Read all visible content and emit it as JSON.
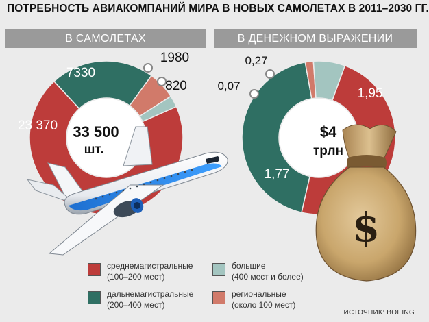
{
  "title": "ПОТРЕБНОСТЬ АВИАКОМПАНИЙ МИРА В НОВЫХ САМОЛЕТАХ В 2011–2030 ГГ.",
  "source": "ИСТОЧНИК: BOEING",
  "colors": {
    "medium_haul": "#bd3c3a",
    "long_haul": "#2f6f63",
    "large": "#a3c5c0",
    "regional": "#d17a6a",
    "ribbon": "#9a9a9a",
    "background": "#ebebeb"
  },
  "legend": [
    {
      "key": "medium_haul",
      "label": "среднемагистральные\n(100–200 мест)"
    },
    {
      "key": "large",
      "label": "большие\n(400 мест и более)"
    },
    {
      "key": "long_haul",
      "label": "дальнемагистральные\n(200–400 мест)"
    },
    {
      "key": "regional",
      "label": "региональные\n(около 100 мест)"
    }
  ],
  "icons": [
    "airplane-icon",
    "money-bag-icon",
    "dollar-sign-icon"
  ],
  "chart_data": [
    {
      "type": "pie",
      "subtitle": "В САМОЛЕТАХ",
      "center_label_line1": "33 500",
      "center_label_line2": "шт.",
      "slices": [
        {
          "key": "medium_haul",
          "value": 23370,
          "label": "23 370"
        },
        {
          "key": "long_haul",
          "value": 7330,
          "label": "7330"
        },
        {
          "key": "regional",
          "value": 1980,
          "label": "1980"
        },
        {
          "key": "large",
          "value": 820,
          "label": "820"
        }
      ]
    },
    {
      "type": "pie",
      "subtitle": "В ДЕНЕЖНОМ ВЫРАЖЕНИИ",
      "center_label_line1": "$4",
      "center_label_line2": "трлн",
      "slices": [
        {
          "key": "medium_haul",
          "value": 1.95,
          "label": "1,95"
        },
        {
          "key": "long_haul",
          "value": 1.77,
          "label": "1,77"
        },
        {
          "key": "regional",
          "value": 0.07,
          "label": "0,07"
        },
        {
          "key": "large",
          "value": 0.27,
          "label": "0,27"
        }
      ]
    }
  ]
}
